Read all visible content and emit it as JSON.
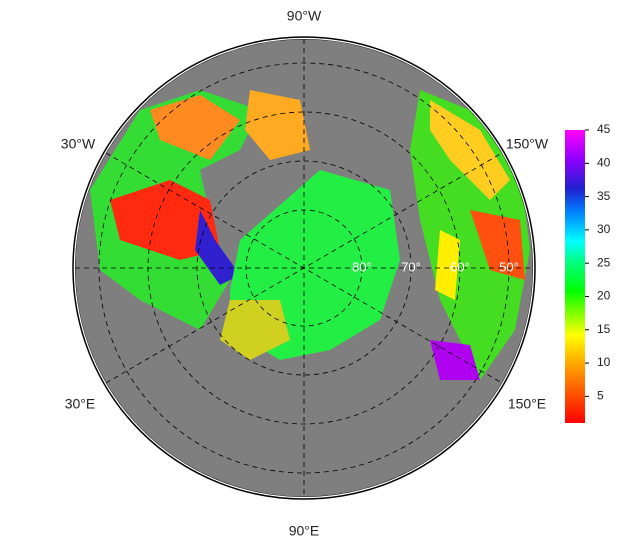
{
  "map": {
    "longitude_labels": [
      "90°W",
      "30°W",
      "150°W",
      "30°E",
      "150°E",
      "90°E"
    ],
    "latitude_labels": [
      "80°",
      "70°",
      "60°",
      "50°"
    ]
  },
  "colorbar": {
    "range": [
      1,
      45
    ],
    "ticks": [
      5,
      10,
      15,
      20,
      25,
      30,
      35,
      40,
      45
    ]
  }
}
